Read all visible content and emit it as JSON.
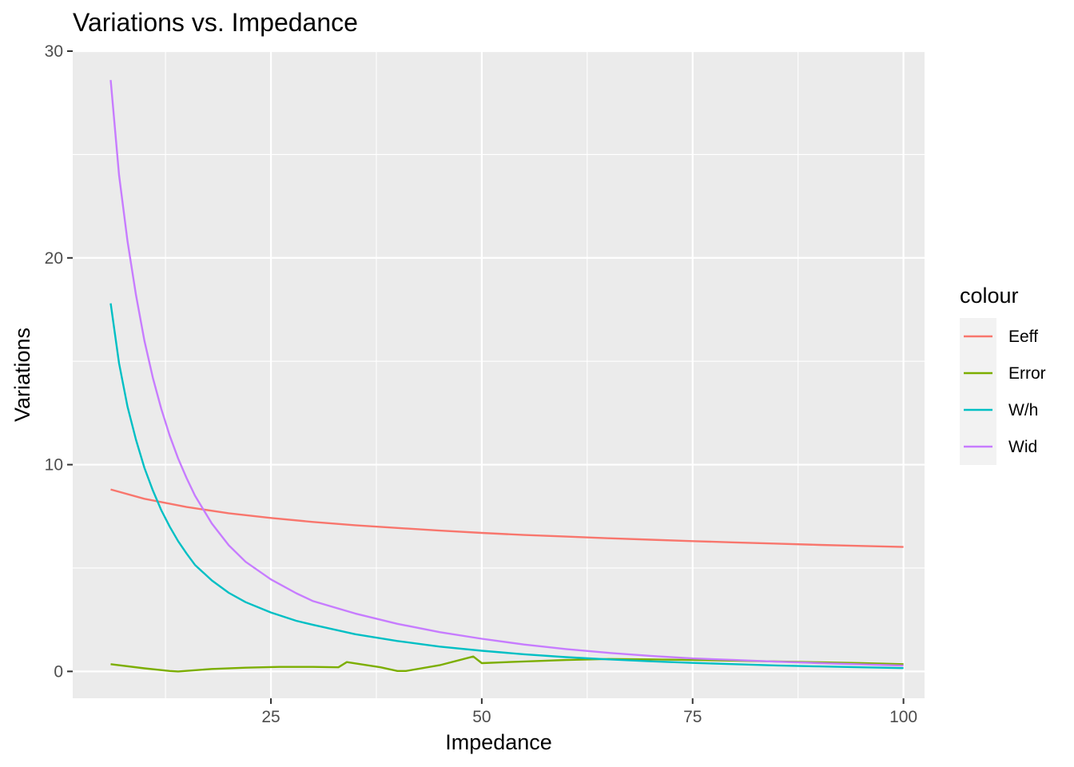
{
  "chart_data": {
    "type": "line",
    "title": "Variations vs. Impedance",
    "xlabel": "Impedance",
    "ylabel": "Variations",
    "xlim": [
      1.5,
      102.5
    ],
    "ylim": [
      -1.3,
      30
    ],
    "x_ticks": [
      25,
      50,
      75,
      100
    ],
    "x_tick_labels": [
      "25",
      "50",
      "75",
      "100"
    ],
    "y_ticks": [
      0,
      10,
      20,
      30
    ],
    "y_tick_labels": [
      "0",
      "10",
      "20",
      "30"
    ],
    "grid": true,
    "legend": {
      "title": "colour",
      "placement": "right",
      "entries": [
        "Eeff",
        "Error",
        "W/h",
        "Wid"
      ]
    },
    "series": [
      {
        "name": "Eeff",
        "color": "#F8766D",
        "x": [
          6,
          10,
          15,
          20,
          25,
          30,
          35,
          40,
          45,
          50,
          55,
          60,
          65,
          70,
          75,
          80,
          85,
          90,
          95,
          100
        ],
        "y": [
          8.8,
          8.35,
          7.95,
          7.65,
          7.42,
          7.23,
          7.07,
          6.94,
          6.81,
          6.7,
          6.6,
          6.52,
          6.44,
          6.37,
          6.3,
          6.24,
          6.18,
          6.12,
          6.07,
          6.02
        ]
      },
      {
        "name": "Error",
        "color": "#7CAE00",
        "x": [
          6,
          10,
          13,
          14,
          18,
          22,
          26,
          30,
          33,
          34,
          38,
          40,
          41,
          45,
          49,
          50,
          55,
          60,
          65,
          70,
          75,
          80,
          85,
          90,
          95,
          100
        ],
        "y": [
          0.35,
          0.15,
          0.02,
          0.0,
          0.12,
          0.18,
          0.22,
          0.22,
          0.2,
          0.45,
          0.2,
          0.02,
          0.02,
          0.3,
          0.72,
          0.4,
          0.48,
          0.55,
          0.6,
          0.58,
          0.55,
          0.52,
          0.48,
          0.44,
          0.4,
          0.35
        ]
      },
      {
        "name": "W/h",
        "color": "#00BFC4",
        "x": [
          6,
          7,
          8,
          9,
          10,
          11,
          12,
          13,
          14,
          15,
          16,
          18,
          20,
          22,
          25,
          28,
          30,
          35,
          40,
          45,
          50,
          55,
          60,
          65,
          70,
          75,
          80,
          85,
          90,
          95,
          100
        ],
        "y": [
          17.8,
          14.9,
          12.8,
          11.2,
          9.85,
          8.75,
          7.8,
          7.0,
          6.3,
          5.7,
          5.15,
          4.4,
          3.8,
          3.35,
          2.85,
          2.45,
          2.25,
          1.8,
          1.47,
          1.2,
          1.0,
          0.83,
          0.69,
          0.58,
          0.49,
          0.41,
          0.35,
          0.29,
          0.24,
          0.2,
          0.16
        ]
      },
      {
        "name": "Wid",
        "color": "#C77CFF",
        "x": [
          6,
          7,
          8,
          9,
          10,
          11,
          12,
          13,
          14,
          15,
          16,
          18,
          20,
          22,
          25,
          28,
          30,
          35,
          40,
          45,
          50,
          55,
          60,
          65,
          70,
          75,
          80,
          85,
          90,
          95,
          100
        ],
        "y": [
          28.6,
          24.0,
          20.8,
          18.2,
          16.0,
          14.2,
          12.7,
          11.4,
          10.3,
          9.35,
          8.5,
          7.15,
          6.1,
          5.3,
          4.45,
          3.78,
          3.4,
          2.8,
          2.3,
          1.9,
          1.58,
          1.3,
          1.08,
          0.9,
          0.75,
          0.63,
          0.55,
          0.47,
          0.4,
          0.34,
          0.28
        ]
      }
    ]
  }
}
